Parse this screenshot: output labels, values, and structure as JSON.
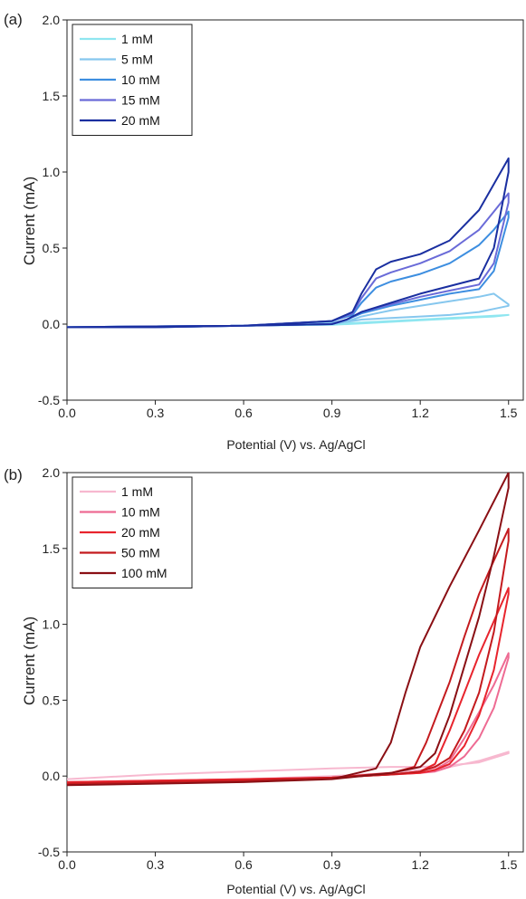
{
  "chart_data": [
    {
      "type": "line",
      "panel_label": "(a)",
      "xlabel": "Potential (V) vs. Ag/AgCl",
      "ylabel": "Current (mA)",
      "xlim": [
        0.0,
        1.55
      ],
      "ylim": [
        -0.5,
        2.0
      ],
      "xticks": [
        "0.0",
        "0.3",
        "0.6",
        "0.9",
        "1.2",
        "1.5"
      ],
      "yticks": [
        "-0.5",
        "0.0",
        "0.5",
        "1.0",
        "1.5",
        "2.0"
      ],
      "legend_position": "top-left",
      "series": [
        {
          "name": "1 mM",
          "color": "#8fe6f0",
          "x": [
            0.0,
            0.3,
            0.6,
            0.9,
            1.0,
            1.1,
            1.2,
            1.3,
            1.4,
            1.45,
            1.5,
            1.5,
            1.45,
            1.4,
            1.3,
            1.2,
            1.1,
            1.0,
            0.9,
            0.6,
            0.3,
            0.0
          ],
          "y": [
            -0.02,
            -0.02,
            -0.01,
            0.0,
            0.01,
            0.02,
            0.03,
            0.04,
            0.05,
            0.055,
            0.06,
            0.06,
            0.05,
            0.045,
            0.035,
            0.025,
            0.015,
            0.005,
            -0.005,
            -0.01,
            -0.015,
            -0.02
          ]
        },
        {
          "name": "5 mM",
          "color": "#86c7ee",
          "x": [
            0.0,
            0.3,
            0.6,
            0.9,
            0.97,
            1.0,
            1.05,
            1.1,
            1.2,
            1.3,
            1.4,
            1.45,
            1.5,
            1.5,
            1.45,
            1.4,
            1.3,
            1.2,
            1.1,
            1.0,
            0.95,
            0.9,
            0.6,
            0.3,
            0.0
          ],
          "y": [
            -0.02,
            -0.02,
            -0.01,
            0.01,
            0.03,
            0.05,
            0.07,
            0.09,
            0.12,
            0.15,
            0.18,
            0.2,
            0.13,
            0.12,
            0.1,
            0.08,
            0.06,
            0.05,
            0.04,
            0.03,
            0.015,
            0.0,
            -0.01,
            -0.015,
            -0.02
          ]
        },
        {
          "name": "10 mM",
          "color": "#3d8ee0",
          "x": [
            0.0,
            0.3,
            0.6,
            0.9,
            0.97,
            1.0,
            1.05,
            1.1,
            1.2,
            1.3,
            1.4,
            1.45,
            1.5,
            1.5,
            1.45,
            1.4,
            1.3,
            1.2,
            1.1,
            1.0,
            0.95,
            0.9,
            0.6,
            0.3,
            0.0
          ],
          "y": [
            -0.02,
            -0.02,
            -0.01,
            0.02,
            0.06,
            0.14,
            0.24,
            0.28,
            0.33,
            0.4,
            0.52,
            0.62,
            0.74,
            0.7,
            0.35,
            0.23,
            0.2,
            0.16,
            0.12,
            0.07,
            0.03,
            0.0,
            -0.01,
            -0.015,
            -0.02
          ]
        },
        {
          "name": "15 mM",
          "color": "#6a6bd8",
          "x": [
            0.0,
            0.3,
            0.6,
            0.9,
            0.97,
            1.0,
            1.05,
            1.1,
            1.2,
            1.3,
            1.4,
            1.45,
            1.5,
            1.5,
            1.45,
            1.4,
            1.3,
            1.2,
            1.1,
            1.0,
            0.95,
            0.9,
            0.6,
            0.3,
            0.0
          ],
          "y": [
            -0.02,
            -0.02,
            -0.01,
            0.02,
            0.07,
            0.17,
            0.3,
            0.34,
            0.4,
            0.48,
            0.62,
            0.74,
            0.86,
            0.8,
            0.4,
            0.26,
            0.22,
            0.18,
            0.13,
            0.08,
            0.03,
            0.0,
            -0.01,
            -0.015,
            -0.02
          ]
        },
        {
          "name": "20 mM",
          "color": "#1a2fa0",
          "x": [
            0.0,
            0.3,
            0.6,
            0.9,
            0.97,
            1.0,
            1.05,
            1.1,
            1.2,
            1.3,
            1.4,
            1.45,
            1.5,
            1.5,
            1.45,
            1.4,
            1.3,
            1.2,
            1.1,
            1.0,
            0.95,
            0.9,
            0.6,
            0.3,
            0.0
          ],
          "y": [
            -0.02,
            -0.02,
            -0.01,
            0.02,
            0.08,
            0.2,
            0.36,
            0.41,
            0.46,
            0.55,
            0.75,
            0.92,
            1.09,
            1.0,
            0.5,
            0.3,
            0.25,
            0.2,
            0.14,
            0.08,
            0.03,
            0.0,
            -0.01,
            -0.015,
            -0.02
          ]
        }
      ]
    },
    {
      "type": "line",
      "panel_label": "(b)",
      "xlabel": "Potential (V) vs. Ag/AgCl",
      "ylabel": "Current (mA)",
      "xlim": [
        0.0,
        1.55
      ],
      "ylim": [
        -0.5,
        2.0
      ],
      "xticks": [
        "0.0",
        "0.3",
        "0.6",
        "0.9",
        "1.2",
        "1.5"
      ],
      "yticks": [
        "-0.5",
        "0.0",
        "0.5",
        "1.0",
        "1.5",
        "2.0"
      ],
      "legend_position": "top-left",
      "series": [
        {
          "name": "1 mM",
          "color": "#f7b8cf",
          "x": [
            0.0,
            0.3,
            0.6,
            0.9,
            1.1,
            1.2,
            1.3,
            1.4,
            1.45,
            1.5,
            1.5,
            1.45,
            1.4,
            1.3,
            1.2,
            1.1,
            0.9,
            0.6,
            0.3,
            0.0
          ],
          "y": [
            -0.04,
            -0.03,
            -0.02,
            0.0,
            0.02,
            0.04,
            0.06,
            0.1,
            0.13,
            0.16,
            0.15,
            0.12,
            0.09,
            0.07,
            0.06,
            0.06,
            0.05,
            0.03,
            0.01,
            -0.02
          ]
        },
        {
          "name": "10 mM",
          "color": "#ee6b93",
          "x": [
            0.0,
            0.3,
            0.6,
            0.9,
            1.1,
            1.2,
            1.25,
            1.3,
            1.35,
            1.4,
            1.45,
            1.5,
            1.5,
            1.45,
            1.4,
            1.35,
            1.3,
            1.25,
            1.2,
            1.1,
            0.9,
            0.6,
            0.3,
            0.0
          ],
          "y": [
            -0.04,
            -0.03,
            -0.02,
            -0.01,
            0.01,
            0.02,
            0.04,
            0.1,
            0.25,
            0.42,
            0.6,
            0.81,
            0.78,
            0.45,
            0.25,
            0.13,
            0.06,
            0.03,
            0.02,
            0.01,
            -0.01,
            -0.02,
            -0.03,
            -0.04
          ]
        },
        {
          "name": "20 mM",
          "color": "#e8242d",
          "x": [
            0.0,
            0.3,
            0.6,
            0.9,
            1.1,
            1.2,
            1.25,
            1.3,
            1.35,
            1.4,
            1.45,
            1.5,
            1.5,
            1.45,
            1.4,
            1.35,
            1.3,
            1.25,
            1.2,
            1.1,
            0.9,
            0.6,
            0.3,
            0.0
          ],
          "y": [
            -0.04,
            -0.03,
            -0.02,
            -0.01,
            0.01,
            0.03,
            0.08,
            0.3,
            0.55,
            0.8,
            1.02,
            1.24,
            1.2,
            0.7,
            0.4,
            0.2,
            0.08,
            0.04,
            0.02,
            0.01,
            -0.01,
            -0.02,
            -0.03,
            -0.04
          ]
        },
        {
          "name": "50 mM",
          "color": "#c41a1e",
          "x": [
            0.0,
            0.3,
            0.6,
            0.9,
            1.1,
            1.18,
            1.22,
            1.3,
            1.35,
            1.4,
            1.45,
            1.5,
            1.5,
            1.45,
            1.4,
            1.35,
            1.3,
            1.25,
            1.2,
            1.1,
            0.9,
            0.6,
            0.3,
            0.0
          ],
          "y": [
            -0.05,
            -0.04,
            -0.03,
            -0.01,
            0.02,
            0.06,
            0.22,
            0.62,
            0.92,
            1.2,
            1.42,
            1.63,
            1.55,
            0.95,
            0.55,
            0.3,
            0.12,
            0.06,
            0.03,
            0.01,
            -0.01,
            -0.03,
            -0.04,
            -0.05
          ]
        },
        {
          "name": "100 mM",
          "color": "#8a0f14",
          "x": [
            0.0,
            0.3,
            0.6,
            0.9,
            1.05,
            1.1,
            1.15,
            1.2,
            1.3,
            1.4,
            1.5,
            1.5,
            1.45,
            1.4,
            1.3,
            1.25,
            1.2,
            1.1,
            1.0,
            0.9,
            0.6,
            0.3,
            0.0
          ],
          "y": [
            -0.06,
            -0.05,
            -0.04,
            -0.02,
            0.05,
            0.22,
            0.55,
            0.85,
            1.25,
            1.62,
            2.0,
            1.9,
            1.45,
            1.05,
            0.4,
            0.15,
            0.06,
            0.02,
            0.0,
            -0.02,
            -0.04,
            -0.05,
            -0.06
          ]
        }
      ]
    }
  ]
}
